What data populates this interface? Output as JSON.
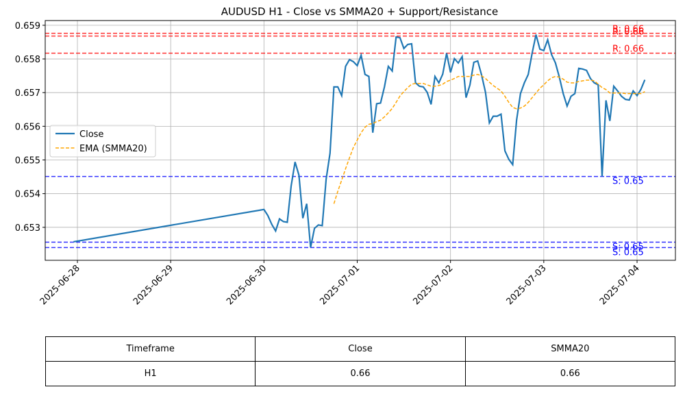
{
  "chart_data": {
    "type": "line",
    "title": "AUDUSD H1 - Close vs SMMA20 + Support/Resistance",
    "x": [
      "2025-06-27T23:00",
      "2025-06-30T00:00",
      "2025-06-30T01:00",
      "2025-06-30T02:00",
      "2025-06-30T03:00",
      "2025-06-30T04:00",
      "2025-06-30T05:00",
      "2025-06-30T06:00",
      "2025-06-30T07:00",
      "2025-06-30T08:00",
      "2025-06-30T09:00",
      "2025-06-30T10:00",
      "2025-06-30T11:00",
      "2025-06-30T12:00",
      "2025-06-30T13:00",
      "2025-06-30T14:00",
      "2025-06-30T15:00",
      "2025-06-30T16:00",
      "2025-06-30T17:00",
      "2025-06-30T18:00",
      "2025-06-30T19:00",
      "2025-06-30T20:00",
      "2025-06-30T21:00",
      "2025-06-30T22:00",
      "2025-06-30T23:00",
      "2025-07-01T00:00",
      "2025-07-01T01:00",
      "2025-07-01T02:00",
      "2025-07-01T03:00",
      "2025-07-01T04:00",
      "2025-07-01T05:00",
      "2025-07-01T06:00",
      "2025-07-01T07:00",
      "2025-07-01T08:00",
      "2025-07-01T09:00",
      "2025-07-01T10:00",
      "2025-07-01T11:00",
      "2025-07-01T12:00",
      "2025-07-01T13:00",
      "2025-07-01T14:00",
      "2025-07-01T15:00",
      "2025-07-01T16:00",
      "2025-07-01T17:00",
      "2025-07-01T18:00",
      "2025-07-01T19:00",
      "2025-07-01T20:00",
      "2025-07-01T21:00",
      "2025-07-01T22:00",
      "2025-07-01T23:00",
      "2025-07-02T00:00",
      "2025-07-02T01:00",
      "2025-07-02T02:00",
      "2025-07-02T03:00",
      "2025-07-02T04:00",
      "2025-07-02T05:00",
      "2025-07-02T06:00",
      "2025-07-02T07:00",
      "2025-07-02T08:00",
      "2025-07-02T09:00",
      "2025-07-02T10:00",
      "2025-07-02T11:00",
      "2025-07-02T12:00",
      "2025-07-02T13:00",
      "2025-07-02T14:00",
      "2025-07-02T15:00",
      "2025-07-02T16:00",
      "2025-07-02T17:00",
      "2025-07-02T18:00",
      "2025-07-02T19:00",
      "2025-07-02T20:00",
      "2025-07-02T21:00",
      "2025-07-02T22:00",
      "2025-07-02T23:00",
      "2025-07-03T00:00",
      "2025-07-03T01:00",
      "2025-07-03T02:00",
      "2025-07-03T03:00",
      "2025-07-03T04:00",
      "2025-07-03T05:00",
      "2025-07-03T06:00",
      "2025-07-03T07:00",
      "2025-07-03T08:00",
      "2025-07-03T09:00",
      "2025-07-03T10:00",
      "2025-07-03T11:00",
      "2025-07-03T12:00",
      "2025-07-03T13:00",
      "2025-07-03T14:00",
      "2025-07-03T15:00",
      "2025-07-03T16:00",
      "2025-07-03T17:00",
      "2025-07-03T18:00",
      "2025-07-03T19:00",
      "2025-07-03T20:00",
      "2025-07-03T21:00",
      "2025-07-03T22:00",
      "2025-07-03T23:00",
      "2025-07-04T00:00",
      "2025-07-04T01:00",
      "2025-07-04T02:00"
    ],
    "series": [
      {
        "name": "Close",
        "color": "#1f77b4",
        "dashed": false,
        "values": [
          0.65257,
          0.65353,
          0.65335,
          0.65309,
          0.65289,
          0.65325,
          0.65317,
          0.65315,
          0.65423,
          0.65494,
          0.65455,
          0.65327,
          0.6537,
          0.6524,
          0.65297,
          0.65307,
          0.65305,
          0.65443,
          0.6552,
          0.65717,
          0.65717,
          0.65691,
          0.65778,
          0.65798,
          0.65792,
          0.6578,
          0.65811,
          0.65754,
          0.65748,
          0.65581,
          0.65667,
          0.65669,
          0.65717,
          0.65778,
          0.65764,
          0.65865,
          0.65863,
          0.65831,
          0.65843,
          0.65845,
          0.65729,
          0.65719,
          0.65717,
          0.65701,
          0.65665,
          0.65748,
          0.65729,
          0.65755,
          0.65817,
          0.6576,
          0.65801,
          0.65788,
          0.65807,
          0.65685,
          0.65723,
          0.6579,
          0.65794,
          0.65752,
          0.65701,
          0.6561,
          0.6563,
          0.6563,
          0.65636,
          0.65527,
          0.65502,
          0.65486,
          0.65618,
          0.65697,
          0.65729,
          0.65754,
          0.65817,
          0.65872,
          0.65829,
          0.65825,
          0.65857,
          0.65813,
          0.65788,
          0.65746,
          0.65697,
          0.6566,
          0.65689,
          0.65697,
          0.65772,
          0.6577,
          0.65766,
          0.65742,
          0.65729,
          0.65723,
          0.65451,
          0.65677,
          0.65616,
          0.65719,
          0.65705,
          0.65689,
          0.6568,
          0.65678,
          0.65705,
          0.65691,
          0.6571,
          0.65738
        ]
      },
      {
        "name": "EMA (SMMA20)",
        "color": "#ffa500",
        "dashed": true,
        "values": [
          null,
          null,
          null,
          null,
          null,
          null,
          null,
          null,
          null,
          null,
          null,
          null,
          null,
          null,
          null,
          null,
          null,
          null,
          null,
          0.6537,
          0.65407,
          0.6544,
          0.65474,
          0.65506,
          0.65537,
          0.65559,
          0.65581,
          0.65597,
          0.65606,
          0.65608,
          0.65614,
          0.65618,
          0.65628,
          0.6564,
          0.65653,
          0.65671,
          0.6569,
          0.65703,
          0.65715,
          0.65725,
          0.65727,
          0.65727,
          0.65727,
          0.65723,
          0.65719,
          0.65719,
          0.65721,
          0.65725,
          0.65733,
          0.65737,
          0.65742,
          0.65748,
          0.65748,
          0.65748,
          0.65748,
          0.65752,
          0.65754,
          0.6575,
          0.65742,
          0.65731,
          0.65721,
          0.65713,
          0.65705,
          0.65689,
          0.65671,
          0.65656,
          0.65652,
          0.65654,
          0.6566,
          0.65671,
          0.65685,
          0.65699,
          0.65713,
          0.65723,
          0.65735,
          0.65744,
          0.65748,
          0.65746,
          0.6574,
          0.65731,
          0.65729,
          0.65729,
          0.65733,
          0.65735,
          0.65737,
          0.65737,
          0.65735,
          0.65725,
          0.65715,
          0.65709,
          0.65699,
          0.65699,
          0.65699,
          0.65699,
          0.65697,
          0.65697,
          0.65697,
          0.65697,
          0.65697,
          0.65703
        ]
      }
    ],
    "ref_lines": [
      {
        "value": 0.65876,
        "label": "R: 0.66",
        "color": "#ff0000"
      },
      {
        "value": 0.65868,
        "label": "R: 0.66",
        "color": "#ff0000"
      },
      {
        "value": 0.65817,
        "label": "R: 0.66",
        "color": "#ff0000"
      },
      {
        "value": 0.65451,
        "label": "S: 0.65",
        "color": "#0000ff"
      },
      {
        "value": 0.65256,
        "label": "S: 0.65",
        "color": "#0000ff"
      },
      {
        "value": 0.6524,
        "label": "S: 0.65",
        "color": "#0000ff"
      }
    ],
    "xlim": [
      "2025-06-27T15:43",
      "2025-07-04T09:52"
    ],
    "xticks": [
      "2025-06-28",
      "2025-06-29",
      "2025-06-30",
      "2025-07-01",
      "2025-07-02",
      "2025-07-03",
      "2025-07-04"
    ],
    "ylim": [
      0.65202,
      0.65914
    ],
    "yticks": [
      0.653,
      0.654,
      0.655,
      0.656,
      0.657,
      0.658,
      0.659
    ],
    "grid": true,
    "legend": "center left"
  },
  "table": {
    "header": [
      "Timeframe",
      "Close",
      "SMMA20"
    ],
    "rows": [
      [
        "H1",
        "0.66",
        "0.66"
      ]
    ]
  }
}
